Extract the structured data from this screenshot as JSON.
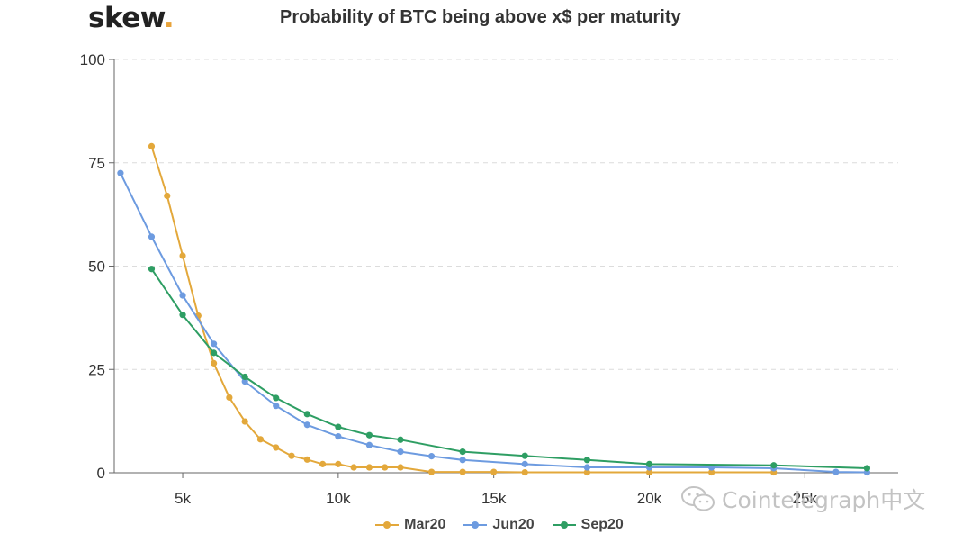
{
  "brand": {
    "name": "skew",
    "dot": "."
  },
  "watermark": {
    "text": "Cointelegraph中文",
    "icon": "wechat-icon"
  },
  "chart_data": {
    "type": "line",
    "title": "Probability of BTC being above x$ per maturity",
    "xlabel": "",
    "ylabel": "",
    "xlim": [
      2800,
      28000
    ],
    "ylim": [
      0,
      100
    ],
    "x_ticks": [
      5000,
      10000,
      15000,
      20000,
      25000
    ],
    "x_tick_labels": [
      "5k",
      "10k",
      "15k",
      "20k",
      "25k"
    ],
    "y_ticks": [
      0,
      25,
      50,
      75,
      100
    ],
    "y_tick_labels": [
      "0",
      "25",
      "50",
      "75",
      "100"
    ],
    "grid": "horizontal dashed",
    "legend_position": "bottom-center",
    "series": [
      {
        "name": "Mar20",
        "color": "#e3a83b",
        "x": [
          4000,
          4500,
          5000,
          5500,
          6000,
          6500,
          7000,
          7500,
          8000,
          8500,
          9000,
          9500,
          10000,
          10500,
          11000,
          11500,
          12000,
          13000,
          14000,
          15000,
          16000,
          18000,
          20000,
          22000,
          24000
        ],
        "y": [
          79,
          67,
          52.5,
          38,
          26.5,
          18.2,
          12.4,
          8.1,
          6.1,
          4.1,
          3.2,
          2.1,
          2.1,
          1.3,
          1.3,
          1.3,
          1.3,
          0.2,
          0.2,
          0.2,
          0.1,
          0.1,
          0.1,
          0.1,
          0.1
        ]
      },
      {
        "name": "Jun20",
        "color": "#6d9be0",
        "x": [
          3000,
          4000,
          5000,
          6000,
          7000,
          8000,
          9000,
          10000,
          11000,
          12000,
          13000,
          14000,
          16000,
          18000,
          20000,
          22000,
          24000,
          26000,
          27000
        ],
        "y": [
          72.5,
          57.1,
          42.9,
          31.2,
          22.1,
          16.2,
          11.6,
          8.8,
          6.7,
          5.1,
          4.0,
          3.1,
          2.1,
          1.3,
          1.3,
          1.3,
          1.1,
          0.2,
          0.1
        ]
      },
      {
        "name": "Sep20",
        "color": "#2e9e63",
        "x": [
          4000,
          5000,
          6000,
          7000,
          8000,
          9000,
          10000,
          11000,
          12000,
          14000,
          16000,
          18000,
          20000,
          24000,
          27000
        ],
        "y": [
          49.3,
          38.2,
          29.0,
          23.2,
          18.1,
          14.2,
          11.1,
          9.1,
          8.0,
          5.1,
          4.1,
          3.1,
          2.1,
          1.8,
          1.1
        ]
      }
    ]
  }
}
